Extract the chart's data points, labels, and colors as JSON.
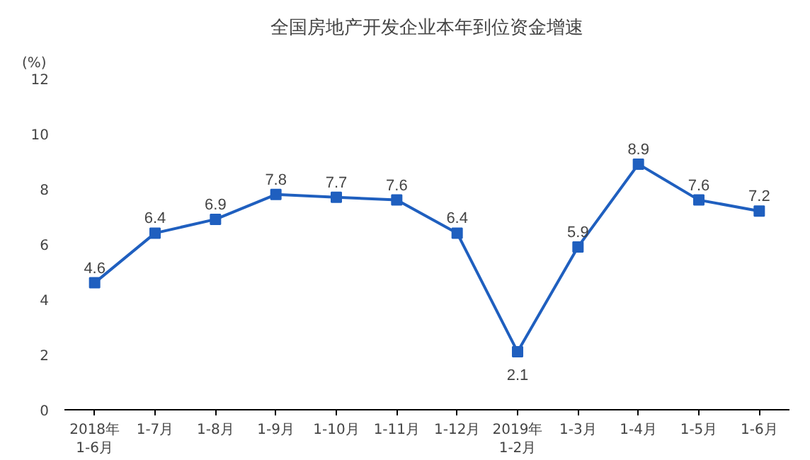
{
  "chart_data": {
    "type": "line",
    "title": "全国房地产开发企业本年到位资金增速",
    "ylabel": "(%)",
    "categories": [
      "2018年\n1-6月",
      "1-7月",
      "1-8月",
      "1-9月",
      "1-10月",
      "1-11月",
      "1-12月",
      "2019年\n1-2月",
      "1-3月",
      "1-4月",
      "1-5月",
      "1-6月"
    ],
    "series": [
      {
        "color": "#1f5fbf",
        "values": [
          4.6,
          6.4,
          6.9,
          7.8,
          7.7,
          7.6,
          6.4,
          2.1,
          5.9,
          8.9,
          7.6,
          7.2
        ]
      }
    ],
    "ylim": [
      0,
      12
    ],
    "yticks": [
      0,
      2,
      4,
      6,
      8,
      10,
      12
    ],
    "grid": false,
    "marker": "square",
    "line_style": "solid",
    "data_labels": true
  }
}
